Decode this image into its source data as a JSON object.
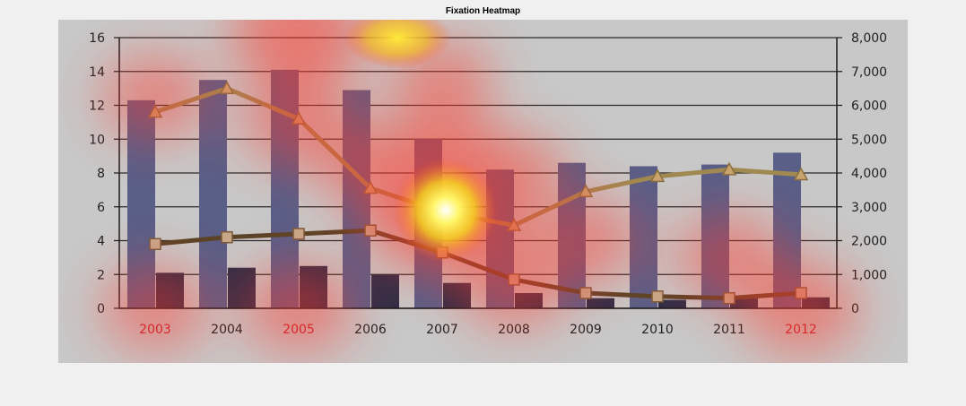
{
  "figure": {
    "title": "Fixation Heatmap"
  },
  "colors": {
    "figure_bg": "#f0f0f0",
    "panel_bg": "#c8c8c8",
    "bar_tall": "#5a5f88",
    "bar_short": "#2e2e48",
    "line_triangle": "#a08a52",
    "line_square": "#5a4428",
    "heat_red": "#ff3a2a",
    "heat_yellow": "#fff25a"
  },
  "chart_data": {
    "type": "bar",
    "title": "",
    "xlabel": "",
    "ylabel": "",
    "categories": [
      "2003",
      "2004",
      "2005",
      "2006",
      "2007",
      "2008",
      "2009",
      "2010",
      "2011",
      "2012"
    ],
    "category_label_colors": [
      "#c0202a",
      "#222222",
      "#c0202a",
      "#222222",
      "#222222",
      "#222222",
      "#222222",
      "#222222",
      "#222222",
      "#c0202a"
    ],
    "ylim": [
      0,
      16
    ],
    "yticks": [
      0,
      2,
      4,
      6,
      8,
      10,
      12,
      14,
      16
    ],
    "y2lim": [
      0,
      8000
    ],
    "y2ticks": [
      "0",
      "1,000",
      "2,000",
      "3,000",
      "4,000",
      "5,000",
      "6,000",
      "7,000",
      "8,000"
    ],
    "grid": true,
    "series": [
      {
        "type": "bar",
        "axis": "left",
        "values": [
          12.3,
          13.5,
          14.1,
          12.9,
          10.0,
          8.2,
          8.6,
          8.4,
          8.5,
          9.2
        ]
      },
      {
        "type": "bar",
        "axis": "left",
        "values": [
          2.1,
          2.4,
          2.5,
          2.0,
          1.5,
          0.9,
          0.6,
          0.5,
          0.6,
          0.65
        ]
      },
      {
        "type": "line",
        "marker": "triangle",
        "axis": "right",
        "values": [
          5800,
          6500,
          5600,
          3550,
          2850,
          2450,
          3450,
          3900,
          4100,
          3950
        ]
      },
      {
        "type": "line",
        "marker": "square",
        "axis": "right",
        "values": [
          1900,
          2100,
          2200,
          2300,
          1650,
          850,
          450,
          350,
          300,
          450
        ]
      }
    ],
    "heatmap_overlay": {
      "description_level": "fixation density overlay",
      "hotspots": [
        {
          "category": "2007",
          "y_value": 5.8,
          "intensity": 1.0
        },
        {
          "category": "2005",
          "y_value": 16.2,
          "intensity": 0.75
        },
        {
          "category": "2003",
          "y_value": 12.5,
          "intensity": 0.45
        },
        {
          "category": "2005",
          "y_value": 11.0,
          "intensity": 0.5
        },
        {
          "category": "2006",
          "y_value": 8.5,
          "intensity": 0.45
        },
        {
          "category": "2007",
          "y_value": 9.5,
          "intensity": 0.5
        },
        {
          "category": "2008",
          "y_value": 1.5,
          "intensity": 0.5
        },
        {
          "category": "2009",
          "y_value": 4.0,
          "intensity": 0.45
        },
        {
          "category": "2011",
          "y_value": 3.0,
          "intensity": 0.45
        },
        {
          "category": "2012",
          "y_value": 0.0,
          "intensity": 0.55
        },
        {
          "category": "2003",
          "y_value": 0.0,
          "intensity": 0.45
        },
        {
          "category": "2005",
          "y_value": 0.0,
          "intensity": 0.5
        },
        {
          "category": "2007",
          "y_value": 13.5,
          "intensity": 0.4
        },
        {
          "category": "2008",
          "y_value": 8.0,
          "intensity": 0.4
        }
      ]
    }
  }
}
